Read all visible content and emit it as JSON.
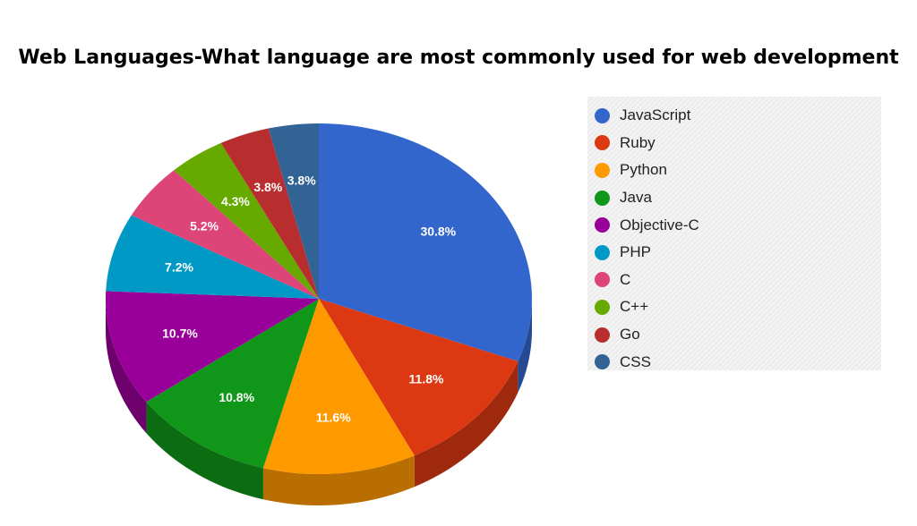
{
  "chart_data": {
    "type": "pie",
    "title": "Web Languages-What language are most commonly used for web development",
    "legend_position": "right",
    "slices": [
      {
        "label": "JavaScript",
        "value": 30.8,
        "display": "30.8%",
        "color": "#3366cc"
      },
      {
        "label": "Ruby",
        "value": 11.8,
        "display": "11.8%",
        "color": "#dc3912"
      },
      {
        "label": "Python",
        "value": 11.6,
        "display": "11.6%",
        "color": "#ff9900"
      },
      {
        "label": "Java",
        "value": 10.8,
        "display": "10.8%",
        "color": "#109618"
      },
      {
        "label": "Objective-C",
        "value": 10.7,
        "display": "10.7%",
        "color": "#990099"
      },
      {
        "label": "PHP",
        "value": 7.2,
        "display": "7.2%",
        "color": "#0099c6"
      },
      {
        "label": "C",
        "value": 5.2,
        "display": "5.2%",
        "color": "#dd4477"
      },
      {
        "label": "C++",
        "value": 4.3,
        "display": "4.3%",
        "color": "#66aa00"
      },
      {
        "label": "Go",
        "value": 3.8,
        "display": "3.8%",
        "color": "#b82e2e"
      },
      {
        "label": "CSS",
        "value": 3.8,
        "display": "3.8%",
        "color": "#316395"
      }
    ]
  }
}
